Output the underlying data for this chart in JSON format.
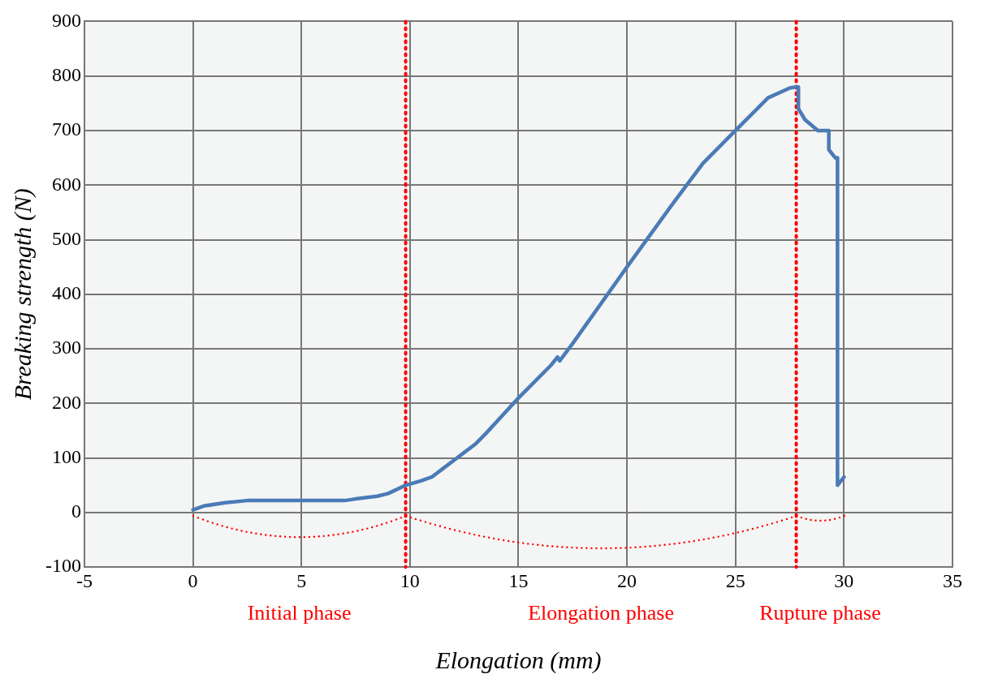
{
  "chart_data": {
    "type": "line",
    "xlabel": "Elongation (mm)",
    "ylabel": "Breaking strength (N)",
    "xlim": [
      -5,
      35
    ],
    "xticks": [
      -5,
      0,
      5,
      10,
      15,
      20,
      25,
      30,
      35
    ],
    "ylim": [
      -100,
      900
    ],
    "yticks": [
      -100,
      0,
      100,
      200,
      300,
      400,
      500,
      600,
      700,
      800,
      900
    ],
    "grid": true,
    "marker": "none",
    "line_style": "solid",
    "series": [
      {
        "color": "#4a7bb7",
        "x": [
          0,
          0.5,
          1,
          1.5,
          2.5,
          5,
          7,
          7.5,
          8.5,
          9,
          9.8,
          10.5,
          11,
          11.5,
          12,
          12.5,
          13,
          13.5,
          15,
          16.5,
          16.8,
          16.9,
          17.5,
          20,
          22,
          23.5,
          25,
          26.5,
          27.5,
          27.8,
          27.9,
          27.9,
          28.2,
          28.8,
          29.3,
          29.3,
          29.6,
          29.7,
          29.7,
          30
        ],
        "values": [
          5,
          12,
          15,
          18,
          22,
          22,
          22,
          25,
          30,
          35,
          50,
          58,
          65,
          80,
          95,
          110,
          125,
          145,
          210,
          270,
          285,
          278,
          310,
          450,
          560,
          640,
          700,
          760,
          778,
          780,
          780,
          740,
          720,
          700,
          700,
          665,
          650,
          650,
          50,
          65
        ]
      }
    ],
    "ref_lines": [
      {
        "axis": "x",
        "value": 9.8,
        "color": "#ff0000",
        "line_style": "dotted"
      },
      {
        "axis": "x",
        "value": 27.8,
        "color": "#ff0000",
        "line_style": "dotted"
      }
    ],
    "annotations": [
      "Initial phase",
      "Elongation phase",
      "Rupture phase"
    ]
  }
}
